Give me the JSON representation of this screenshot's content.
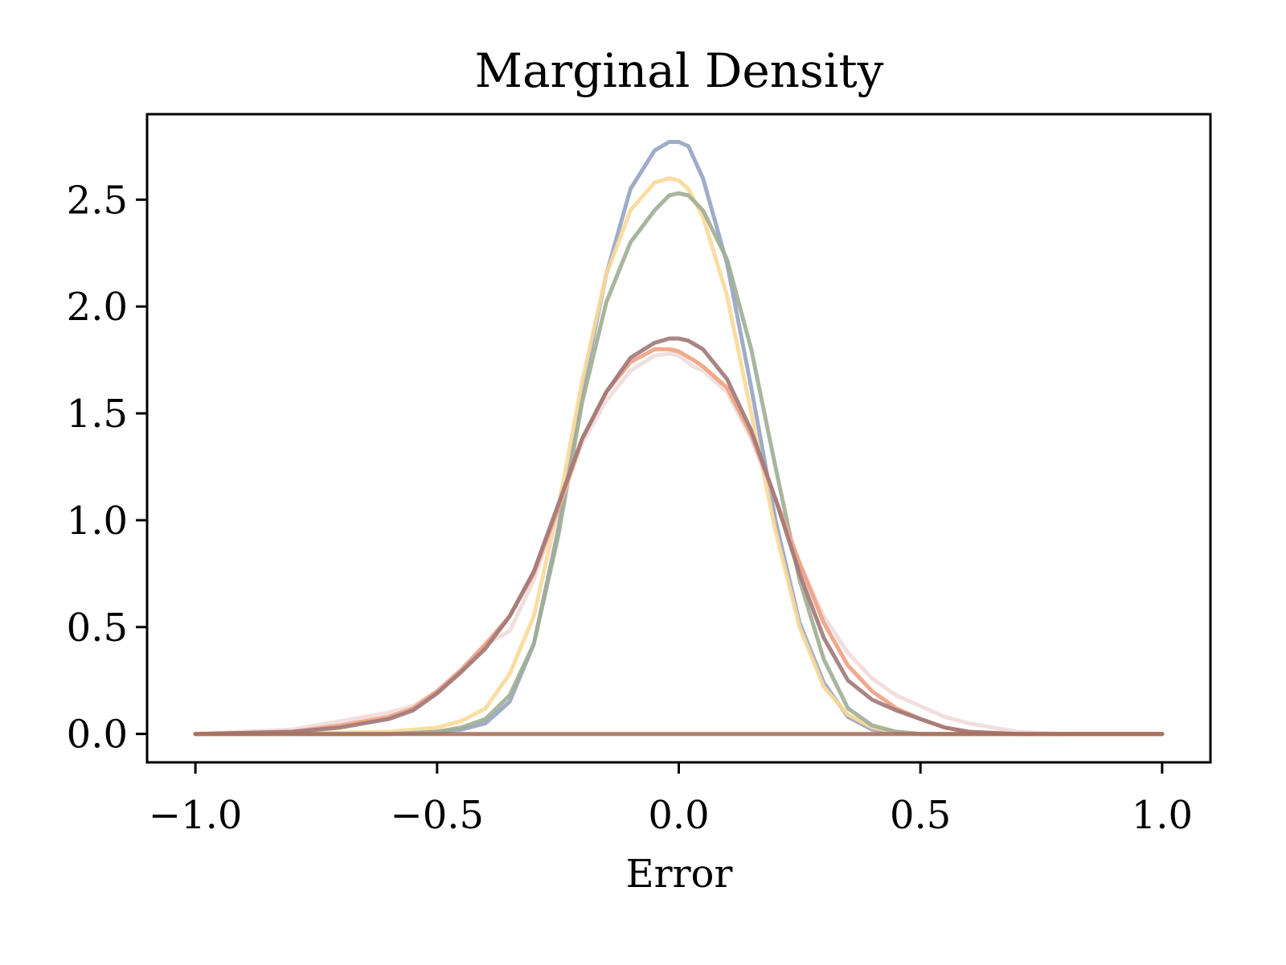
{
  "chart_data": {
    "type": "line",
    "title": "Marginal Density",
    "xlabel": "Error",
    "ylabel": "",
    "xlim": [
      -1.1,
      1.1
    ],
    "ylim": [
      -0.133,
      2.9
    ],
    "x_ticks": [
      -1.0,
      -0.5,
      0.0,
      0.5,
      1.0
    ],
    "x_tick_labels": [
      "−1.0",
      "−0.5",
      "0.0",
      "0.5",
      "1.0"
    ],
    "y_ticks": [
      0.0,
      0.5,
      1.0,
      1.5,
      2.0,
      2.5
    ],
    "y_tick_labels": [
      "0.0",
      "0.5",
      "1.0",
      "1.5",
      "2.0",
      "2.5"
    ],
    "grid": false,
    "legend": "none",
    "series": [
      {
        "color": "#95a3c3",
        "x": [
          -1.0,
          -0.8,
          -0.6,
          -0.5,
          -0.45,
          -0.4,
          -0.35,
          -0.3,
          -0.25,
          -0.2,
          -0.15,
          -0.1,
          -0.05,
          -0.02,
          0.0,
          0.02,
          0.05,
          0.1,
          0.15,
          0.2,
          0.25,
          0.3,
          0.35,
          0.4,
          0.45,
          0.5,
          0.6,
          0.8,
          1.0
        ],
        "values": [
          0.0,
          0.0,
          0.0,
          0.01,
          0.02,
          0.05,
          0.15,
          0.42,
          0.95,
          1.6,
          2.15,
          2.55,
          2.73,
          2.77,
          2.77,
          2.75,
          2.6,
          2.2,
          1.62,
          1.0,
          0.52,
          0.24,
          0.08,
          0.02,
          0.01,
          0.0,
          0.0,
          0.0,
          0.0
        ]
      },
      {
        "color": "#fad998",
        "x": [
          -1.0,
          -0.8,
          -0.6,
          -0.5,
          -0.45,
          -0.4,
          -0.35,
          -0.3,
          -0.25,
          -0.2,
          -0.15,
          -0.1,
          -0.05,
          -0.02,
          0.0,
          0.02,
          0.05,
          0.1,
          0.15,
          0.2,
          0.25,
          0.3,
          0.35,
          0.4,
          0.45,
          0.5,
          0.6,
          0.8,
          1.0
        ],
        "values": [
          0.0,
          0.0,
          0.01,
          0.03,
          0.06,
          0.12,
          0.28,
          0.55,
          1.05,
          1.65,
          2.15,
          2.45,
          2.58,
          2.6,
          2.59,
          2.55,
          2.42,
          2.05,
          1.5,
          0.95,
          0.5,
          0.22,
          0.09,
          0.03,
          0.01,
          0.0,
          0.0,
          0.0,
          0.0
        ]
      },
      {
        "color": "#9eae94",
        "x": [
          -1.0,
          -0.8,
          -0.6,
          -0.5,
          -0.45,
          -0.4,
          -0.35,
          -0.3,
          -0.25,
          -0.2,
          -0.15,
          -0.1,
          -0.05,
          -0.02,
          0.0,
          0.02,
          0.05,
          0.1,
          0.15,
          0.2,
          0.25,
          0.3,
          0.35,
          0.4,
          0.45,
          0.5,
          0.6,
          0.8,
          1.0
        ],
        "values": [
          0.0,
          0.0,
          0.0,
          0.01,
          0.03,
          0.07,
          0.18,
          0.42,
          0.92,
          1.55,
          2.02,
          2.3,
          2.45,
          2.52,
          2.53,
          2.52,
          2.45,
          2.22,
          1.8,
          1.25,
          0.72,
          0.35,
          0.12,
          0.04,
          0.01,
          0.0,
          0.0,
          0.0,
          0.0
        ]
      },
      {
        "color": "#f0dcdc",
        "x": [
          -1.0,
          -0.8,
          -0.7,
          -0.6,
          -0.55,
          -0.5,
          -0.45,
          -0.4,
          -0.35,
          -0.3,
          -0.25,
          -0.2,
          -0.15,
          -0.1,
          -0.05,
          -0.02,
          0.0,
          0.03,
          0.05,
          0.1,
          0.15,
          0.2,
          0.25,
          0.3,
          0.35,
          0.4,
          0.45,
          0.5,
          0.55,
          0.6,
          0.7,
          0.8,
          1.0
        ],
        "values": [
          0.0,
          0.02,
          0.06,
          0.1,
          0.13,
          0.2,
          0.3,
          0.42,
          0.48,
          0.72,
          1.05,
          1.36,
          1.56,
          1.7,
          1.77,
          1.78,
          1.77,
          1.72,
          1.7,
          1.6,
          1.38,
          1.1,
          0.8,
          0.55,
          0.38,
          0.26,
          0.18,
          0.13,
          0.08,
          0.05,
          0.01,
          0.0,
          0.0
        ]
      },
      {
        "color": "#f0a080",
        "x": [
          -1.0,
          -0.8,
          -0.7,
          -0.6,
          -0.55,
          -0.5,
          -0.45,
          -0.4,
          -0.35,
          -0.3,
          -0.25,
          -0.2,
          -0.15,
          -0.1,
          -0.05,
          -0.02,
          0.0,
          0.03,
          0.05,
          0.1,
          0.15,
          0.2,
          0.25,
          0.3,
          0.35,
          0.4,
          0.45,
          0.5,
          0.55,
          0.6,
          0.7,
          0.8,
          1.0
        ],
        "values": [
          0.0,
          0.01,
          0.04,
          0.08,
          0.12,
          0.2,
          0.3,
          0.42,
          0.55,
          0.75,
          1.05,
          1.38,
          1.6,
          1.74,
          1.8,
          1.8,
          1.79,
          1.75,
          1.72,
          1.62,
          1.4,
          1.1,
          0.8,
          0.52,
          0.32,
          0.2,
          0.12,
          0.07,
          0.03,
          0.01,
          0.0,
          0.0,
          0.0
        ]
      },
      {
        "color": "#a07878",
        "x": [
          -1.0,
          -0.8,
          -0.7,
          -0.6,
          -0.55,
          -0.5,
          -0.45,
          -0.4,
          -0.35,
          -0.3,
          -0.25,
          -0.2,
          -0.15,
          -0.1,
          -0.05,
          -0.02,
          0.0,
          0.02,
          0.05,
          0.1,
          0.15,
          0.2,
          0.25,
          0.3,
          0.35,
          0.4,
          0.45,
          0.5,
          0.55,
          0.6,
          0.7,
          0.8,
          1.0
        ],
        "values": [
          0.0,
          0.01,
          0.03,
          0.07,
          0.11,
          0.19,
          0.29,
          0.4,
          0.55,
          0.76,
          1.07,
          1.38,
          1.6,
          1.76,
          1.83,
          1.85,
          1.85,
          1.84,
          1.8,
          1.66,
          1.42,
          1.1,
          0.75,
          0.45,
          0.25,
          0.16,
          0.11,
          0.07,
          0.03,
          0.01,
          0.0,
          0.0,
          0.0
        ]
      },
      {
        "color": "#a87060",
        "x": [
          -1.0,
          -0.5,
          0.6,
          1.0
        ],
        "values": [
          0.0,
          0.0,
          0.0,
          0.0
        ]
      }
    ]
  }
}
